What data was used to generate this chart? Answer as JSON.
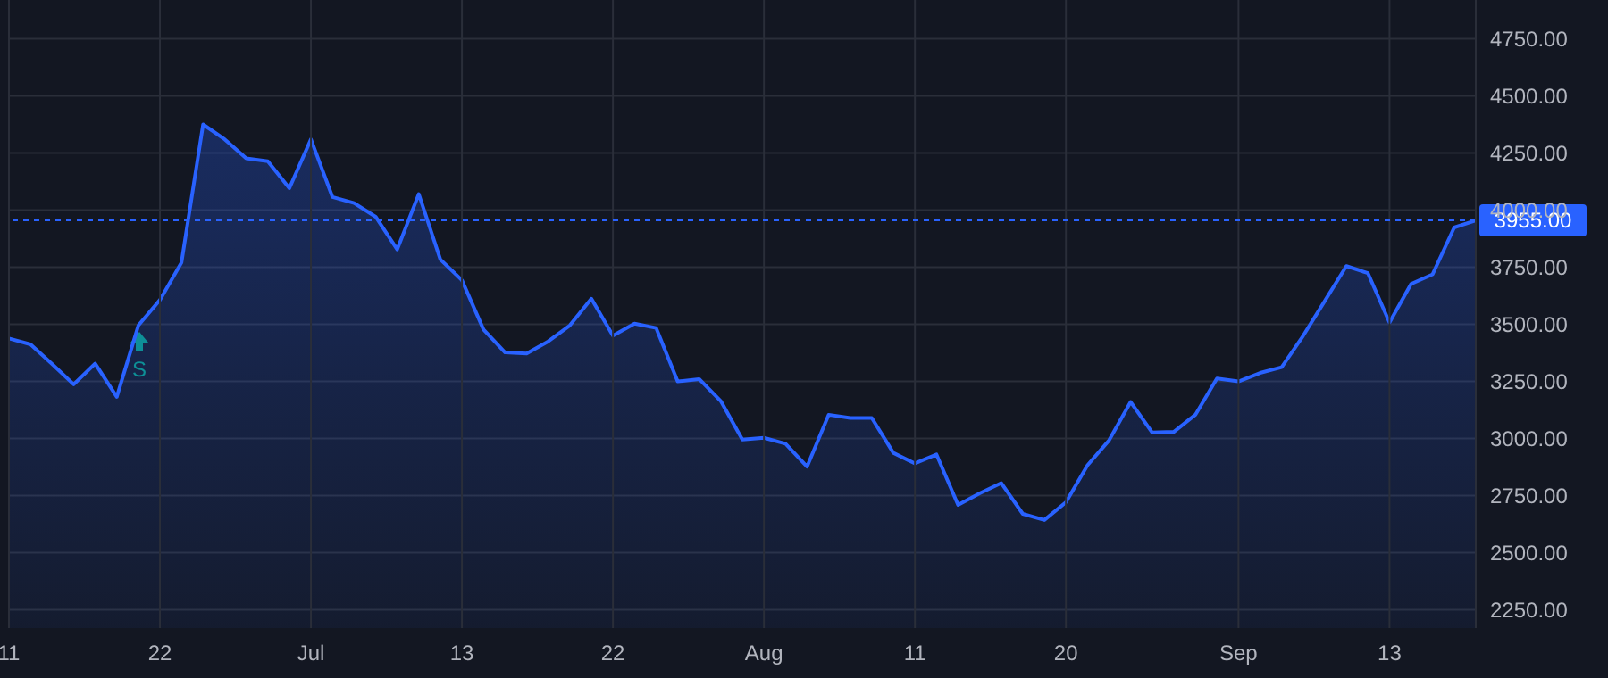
{
  "chart_data": {
    "type": "area",
    "categories": [
      "11",
      null,
      null,
      null,
      null,
      null,
      null,
      "22",
      null,
      null,
      null,
      null,
      null,
      null,
      "Jul",
      null,
      null,
      null,
      null,
      null,
      null,
      "13",
      null,
      null,
      null,
      null,
      null,
      null,
      "22",
      null,
      null,
      null,
      null,
      null,
      null,
      "Aug",
      null,
      null,
      null,
      null,
      null,
      null,
      "11",
      null,
      null,
      null,
      null,
      null,
      null,
      "20",
      null,
      null,
      null,
      null,
      null,
      null,
      null,
      "Sep",
      null,
      null,
      null,
      null,
      null,
      null,
      "13",
      null,
      null,
      null,
      null
    ],
    "series": [
      {
        "color": "#2962ff",
        "values": [
          3438,
          3412,
          3326,
          3237,
          3328,
          3182,
          3495,
          3607,
          3771,
          4375,
          4310,
          4227,
          4214,
          4096,
          4310,
          4057,
          4031,
          3971,
          3828,
          4070,
          3784,
          3693,
          3477,
          3377,
          3372,
          3425,
          3495,
          3612,
          3450,
          3503,
          3484,
          3250,
          3260,
          3164,
          2995,
          3003,
          2977,
          2877,
          3104,
          3090,
          3090,
          2937,
          2891,
          2930,
          2709,
          2760,
          2805,
          2670,
          2643,
          2721,
          2883,
          2992,
          3160,
          3026,
          3029,
          3104,
          3263,
          3250,
          3287,
          3312,
          3450,
          3602,
          3755,
          3724,
          3508,
          3677,
          3719,
          3924,
          3955
        ]
      }
    ],
    "ylim": [
      2170,
      4920
    ],
    "yticks": [
      {
        "value": 2250,
        "label": "2250.00"
      },
      {
        "value": 2500,
        "label": "2500.00"
      },
      {
        "value": 2750,
        "label": "2750.00"
      },
      {
        "value": 3000,
        "label": "3000.00"
      },
      {
        "value": 3250,
        "label": "3250.00"
      },
      {
        "value": 3500,
        "label": "3500.00"
      },
      {
        "value": 3750,
        "label": "3750.00"
      },
      {
        "value": 4000,
        "label": "4000.00"
      },
      {
        "value": 4250,
        "label": "4250.00"
      },
      {
        "value": 4500,
        "label": "4500.00"
      },
      {
        "value": 4750,
        "label": "4750.00"
      }
    ],
    "grid": true,
    "line_style": "solid",
    "marker": "none",
    "ref_lines": [
      {
        "axis": "y",
        "value": 3955,
        "label": "3955.00",
        "color": "#2962ff",
        "line_style": "dotted"
      }
    ],
    "annotations": [
      "S"
    ]
  }
}
